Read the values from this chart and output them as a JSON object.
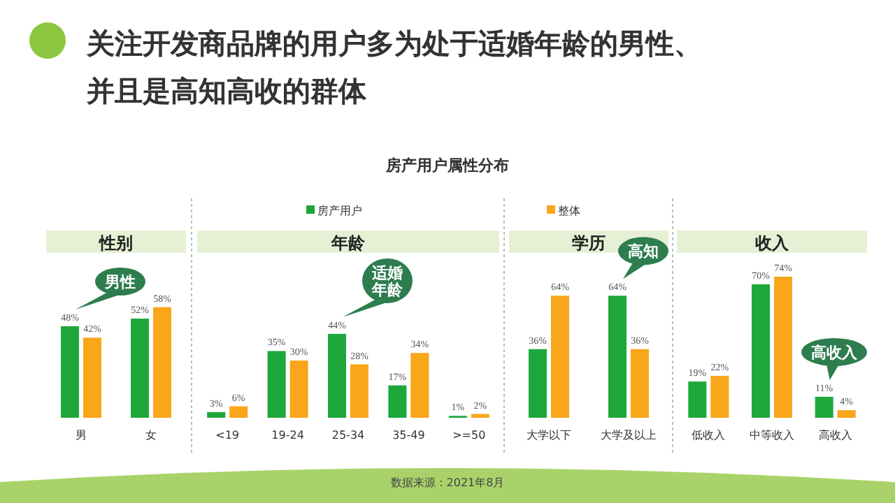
{
  "chart_data": [
    {
      "type": "other",
      "title": "关注开发商品牌的用户多为处于适婚年龄的男性、并且是高知高收的群体",
      "subtitle": "房产用户属性分布",
      "annotations": [
        "数据来源：2021年8月"
      ]
    },
    {
      "type": "bar",
      "title": "性别",
      "categories": [
        "男",
        "女"
      ],
      "series": [
        {
          "color": "#1ea83c",
          "values": [
            48,
            52
          ],
          "value_labels": [
            "48%",
            "52%"
          ]
        },
        {
          "color": "#f9a61a",
          "values": [
            42,
            58
          ],
          "value_labels": [
            "42%",
            "58%"
          ]
        }
      ],
      "annotations": [
        "男性"
      ]
    },
    {
      "type": "bar",
      "title": "年龄",
      "categories": [
        "<19",
        "19-24",
        "25-34",
        "35-49",
        ">=50"
      ],
      "series": [
        {
          "name": "房产用户",
          "color": "#1ea83c",
          "values": [
            3,
            35,
            44,
            17,
            1
          ],
          "value_labels": [
            "3%",
            "35%",
            "44%",
            "17%",
            "1%"
          ]
        },
        {
          "color": "#f9a61a",
          "values": [
            6,
            30,
            28,
            34,
            2
          ],
          "value_labels": [
            "6%",
            "30%",
            "28%",
            "34%",
            "2%"
          ]
        }
      ],
      "annotations": [
        "适婚年龄"
      ],
      "legend": "top"
    },
    {
      "type": "bar",
      "title": "学历",
      "categories": [
        "大学以下",
        "大学及以上"
      ],
      "series": [
        {
          "color": "#1ea83c",
          "values": [
            36,
            64
          ],
          "value_labels": [
            "36%",
            "64%"
          ]
        },
        {
          "name": "整体",
          "color": "#f9a61a",
          "values": [
            64,
            36
          ],
          "value_labels": [
            "64%",
            "36%"
          ]
        }
      ],
      "annotations": [
        "高知"
      ],
      "legend": "top"
    },
    {
      "type": "bar",
      "title": "收入",
      "categories": [
        "低收入",
        "中等收入",
        "高收入"
      ],
      "series": [
        {
          "color": "#1ea83c",
          "values": [
            19,
            70,
            11
          ],
          "value_labels": [
            "19%",
            "70%",
            "11%"
          ]
        },
        {
          "color": "#f9a61a",
          "values": [
            22,
            74,
            4
          ],
          "value_labels": [
            "22%",
            "74%",
            "4%"
          ]
        }
      ],
      "annotations": [
        "高收入"
      ]
    }
  ]
}
